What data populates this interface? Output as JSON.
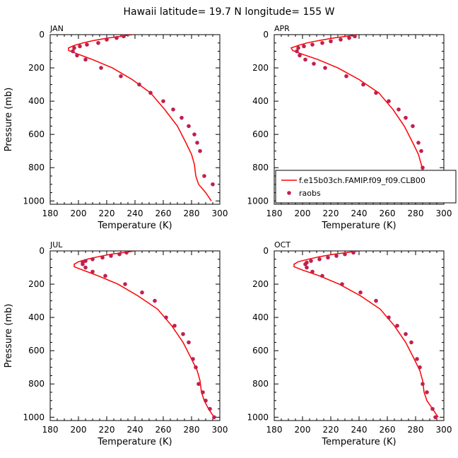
{
  "title": "Hawaii  latitude= 19.7 N longitude= 155 W",
  "colors": {
    "model": "#ff0000",
    "raobs": "#c02050",
    "axis": "#000000"
  },
  "legend": {
    "model_label": "f.e15b03ch.FAMIP.f09_f09.CLB00",
    "obs_label": "raobs",
    "panel": "APR",
    "placement": "bottom"
  },
  "chart_data": [
    {
      "type": "line",
      "panel": "JAN",
      "xlabel": "Temperature (K)",
      "ylabel": "Pressure (mb)",
      "xlim": [
        180,
        300
      ],
      "ylim": [
        1020,
        0
      ],
      "xticks": [
        "180",
        "200",
        "220",
        "240",
        "260",
        "280",
        "300"
      ],
      "yticks": [
        "0",
        "200",
        "400",
        "600",
        "800",
        "1000"
      ],
      "series": [
        {
          "name": "f.e15b03ch.FAMIP.f09_f09.CLB00",
          "kind": "line",
          "x": [
            238,
            230,
            221,
            211,
            203,
            197,
            193,
            193,
            199,
            210,
            224,
            238,
            251,
            261,
            270,
            276,
            280,
            282,
            283,
            285,
            290,
            294
          ],
          "y": [
            0,
            10,
            20,
            35,
            50,
            65,
            80,
            95,
            115,
            150,
            200,
            270,
            350,
            450,
            550,
            650,
            720,
            780,
            850,
            900,
            950,
            1000
          ]
        },
        {
          "name": "raobs",
          "kind": "scatter",
          "x": [
            232,
            227,
            220,
            214,
            206,
            201,
            197,
            196,
            199,
            205,
            216,
            230,
            243,
            251,
            260,
            267,
            273,
            278,
            282,
            284,
            286,
            289,
            295
          ],
          "y": [
            10,
            20,
            30,
            50,
            60,
            70,
            80,
            100,
            125,
            150,
            200,
            250,
            300,
            350,
            400,
            450,
            500,
            550,
            600,
            650,
            700,
            850,
            900
          ]
        }
      ]
    },
    {
      "type": "line",
      "panel": "APR",
      "xlabel": "Temperature (K)",
      "ylabel": "",
      "xlim": [
        180,
        300
      ],
      "ylim": [
        1020,
        0
      ],
      "xticks": [
        "180",
        "200",
        "220",
        "240",
        "260",
        "280",
        "300"
      ],
      "yticks": [
        "0",
        "200",
        "400",
        "600",
        "800",
        "1000"
      ],
      "series": [
        {
          "name": "f.e15b03ch.FAMIP.f09_f09.CLB00",
          "kind": "line",
          "x": [
            239,
            231,
            222,
            212,
            203,
            197,
            192,
            193,
            199,
            211,
            225,
            240,
            254,
            264,
            272,
            278,
            282,
            284,
            286,
            289,
            293,
            297
          ],
          "y": [
            0,
            10,
            20,
            35,
            50,
            65,
            80,
            95,
            115,
            150,
            200,
            270,
            350,
            450,
            550,
            650,
            720,
            780,
            850,
            900,
            950,
            1000
          ]
        },
        {
          "name": "raobs",
          "kind": "scatter",
          "x": [
            237,
            233,
            227,
            220,
            214,
            207,
            201,
            197,
            196,
            198,
            202,
            208,
            216,
            231,
            243,
            252,
            261,
            268,
            273,
            278,
            282,
            284,
            285,
            294
          ],
          "y": [
            10,
            20,
            30,
            40,
            50,
            60,
            70,
            80,
            100,
            125,
            150,
            175,
            200,
            250,
            300,
            350,
            400,
            450,
            500,
            550,
            650,
            700,
            800,
            1000
          ]
        }
      ]
    },
    {
      "type": "line",
      "panel": "JUL",
      "xlabel": "Temperature (K)",
      "ylabel": "Pressure (mb)",
      "xlim": [
        180,
        300
      ],
      "ylim": [
        1020,
        0
      ],
      "xticks": [
        "180",
        "200",
        "220",
        "240",
        "260",
        "280",
        "300"
      ],
      "yticks": [
        "0",
        "200",
        "400",
        "600",
        "800",
        "1000"
      ],
      "series": [
        {
          "name": "f.e15b03ch.FAMIP.f09_f09.CLB00",
          "kind": "line",
          "x": [
            240,
            232,
            223,
            214,
            206,
            200,
            197,
            197,
            203,
            214,
            228,
            242,
            256,
            266,
            274,
            280,
            284,
            286,
            287,
            289,
            292,
            296
          ],
          "y": [
            0,
            10,
            20,
            35,
            50,
            65,
            80,
            95,
            115,
            150,
            200,
            270,
            350,
            450,
            550,
            650,
            720,
            780,
            850,
            900,
            950,
            1000
          ]
        },
        {
          "name": "raobs",
          "kind": "scatter",
          "x": [
            234,
            229,
            223,
            217,
            210,
            205,
            203,
            203,
            205,
            210,
            219,
            233,
            245,
            254,
            262,
            268,
            274,
            278,
            281,
            283,
            285,
            288,
            290,
            293,
            296
          ],
          "y": [
            10,
            20,
            30,
            40,
            50,
            60,
            70,
            80,
            100,
            125,
            150,
            200,
            250,
            300,
            400,
            450,
            500,
            550,
            650,
            700,
            800,
            850,
            900,
            950,
            1000
          ]
        }
      ]
    },
    {
      "type": "line",
      "panel": "OCT",
      "xlabel": "Temperature (K)",
      "ylabel": "",
      "xlim": [
        180,
        300
      ],
      "ylim": [
        1020,
        0
      ],
      "xticks": [
        "180",
        "200",
        "220",
        "240",
        "260",
        "280",
        "300"
      ],
      "yticks": [
        "0",
        "200",
        "400",
        "600",
        "800",
        "1000"
      ],
      "series": [
        {
          "name": "f.e15b03ch.FAMIP.f09_f09.CLB00",
          "kind": "line",
          "x": [
            240,
            231,
            222,
            212,
            204,
            197,
            194,
            194,
            200,
            212,
            226,
            241,
            255,
            265,
            273,
            279,
            283,
            285,
            286,
            288,
            292,
            296
          ],
          "y": [
            0,
            10,
            20,
            35,
            50,
            65,
            80,
            95,
            115,
            150,
            200,
            270,
            350,
            450,
            550,
            650,
            720,
            780,
            850,
            900,
            950,
            1000
          ]
        },
        {
          "name": "raobs",
          "kind": "scatter",
          "x": [
            236,
            230,
            224,
            218,
            212,
            206,
            203,
            202,
            203,
            207,
            214,
            228,
            241,
            252,
            261,
            267,
            273,
            277,
            281,
            283,
            285,
            288,
            292,
            294
          ],
          "y": [
            10,
            20,
            30,
            40,
            50,
            60,
            70,
            80,
            100,
            125,
            150,
            200,
            250,
            300,
            400,
            450,
            500,
            550,
            650,
            700,
            800,
            850,
            950,
            1000
          ]
        }
      ]
    }
  ]
}
